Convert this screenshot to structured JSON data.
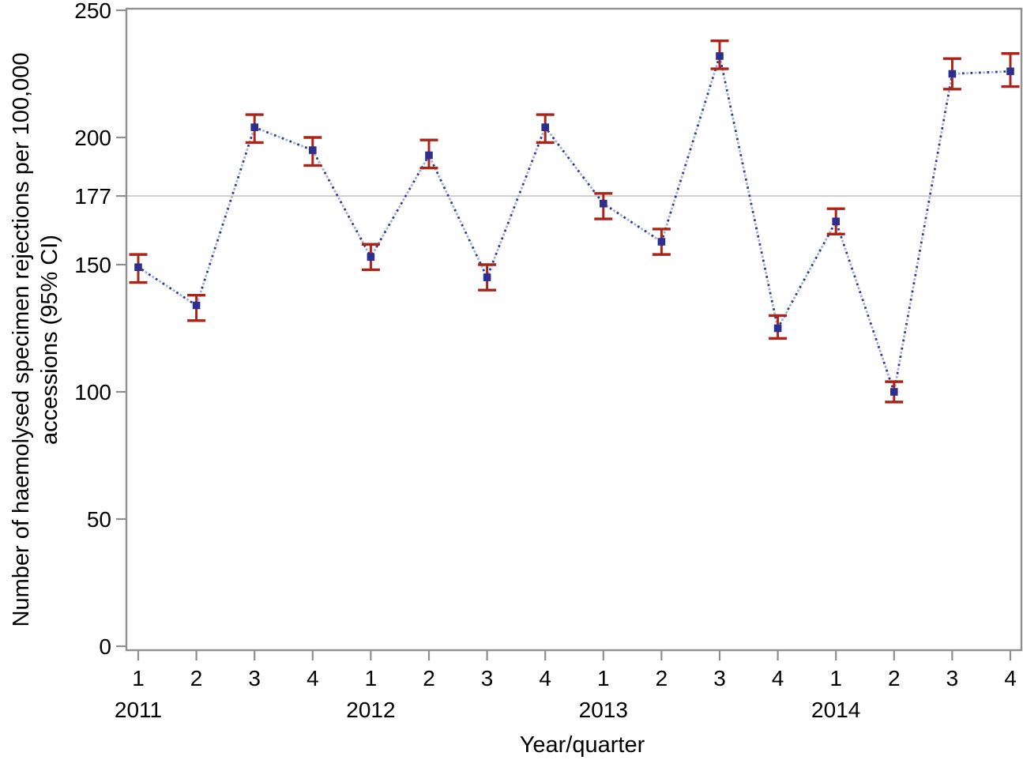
{
  "figure": {
    "xlabel": "Year/quarter",
    "ylabel_line1": "Number of haemolysed specimen rejections per 100,000",
    "ylabel_line2": "accessions (95% CI)"
  },
  "chart_data": {
    "type": "scatter",
    "subtype": "point estimates with 95% CI error bars connected by dotted line",
    "title": "",
    "xlabel": "Year/quarter",
    "ylabel": "Number of haemolysed specimen rejections per 100,000 accessions (95% CI)",
    "ylim": [
      0,
      250
    ],
    "yticks": [
      0,
      50,
      100,
      150,
      177,
      200,
      250
    ],
    "reference_line": 177,
    "grid": "off",
    "legend": "none",
    "x_groups": [
      {
        "year": "2011",
        "quarters": [
          "1",
          "2",
          "3",
          "4"
        ]
      },
      {
        "year": "2012",
        "quarters": [
          "1",
          "2",
          "3",
          "4"
        ]
      },
      {
        "year": "2013",
        "quarters": [
          "1",
          "2",
          "3",
          "4"
        ]
      },
      {
        "year": "2014",
        "quarters": [
          "1",
          "2",
          "3",
          "4"
        ]
      }
    ],
    "series": [
      {
        "name": "Haemolysed specimen rejections per 100,000 accessions",
        "points": [
          {
            "year": "2011",
            "quarter": "1",
            "value": 149,
            "ci_low": 143,
            "ci_high": 154
          },
          {
            "year": "2011",
            "quarter": "2",
            "value": 134,
            "ci_low": 128,
            "ci_high": 138
          },
          {
            "year": "2011",
            "quarter": "3",
            "value": 204,
            "ci_low": 198,
            "ci_high": 209
          },
          {
            "year": "2011",
            "quarter": "4",
            "value": 195,
            "ci_low": 189,
            "ci_high": 200
          },
          {
            "year": "2012",
            "quarter": "1",
            "value": 153,
            "ci_low": 148,
            "ci_high": 158
          },
          {
            "year": "2012",
            "quarter": "2",
            "value": 193,
            "ci_low": 188,
            "ci_high": 199
          },
          {
            "year": "2012",
            "quarter": "3",
            "value": 145,
            "ci_low": 140,
            "ci_high": 150
          },
          {
            "year": "2012",
            "quarter": "4",
            "value": 204,
            "ci_low": 198,
            "ci_high": 209
          },
          {
            "year": "2013",
            "quarter": "1",
            "value": 174,
            "ci_low": 168,
            "ci_high": 178
          },
          {
            "year": "2013",
            "quarter": "2",
            "value": 159,
            "ci_low": 154,
            "ci_high": 164
          },
          {
            "year": "2013",
            "quarter": "3",
            "value": 232,
            "ci_low": 227,
            "ci_high": 238
          },
          {
            "year": "2013",
            "quarter": "4",
            "value": 125,
            "ci_low": 121,
            "ci_high": 130
          },
          {
            "year": "2014",
            "quarter": "1",
            "value": 167,
            "ci_low": 162,
            "ci_high": 172
          },
          {
            "year": "2014",
            "quarter": "2",
            "value": 100,
            "ci_low": 96,
            "ci_high": 104
          },
          {
            "year": "2014",
            "quarter": "3",
            "value": 225,
            "ci_low": 219,
            "ci_high": 231
          },
          {
            "year": "2014",
            "quarter": "4",
            "value": 226,
            "ci_low": 220,
            "ci_high": 233
          }
        ]
      }
    ],
    "colors": {
      "marker": "#2b2f8f",
      "error_bar": "#ab2418",
      "connector_dark": "#2e3a96",
      "connector_light": "#9fb1dd",
      "reference_line": "#c6c6c6",
      "axis": "#8f8f8f",
      "text": "#000000"
    }
  }
}
